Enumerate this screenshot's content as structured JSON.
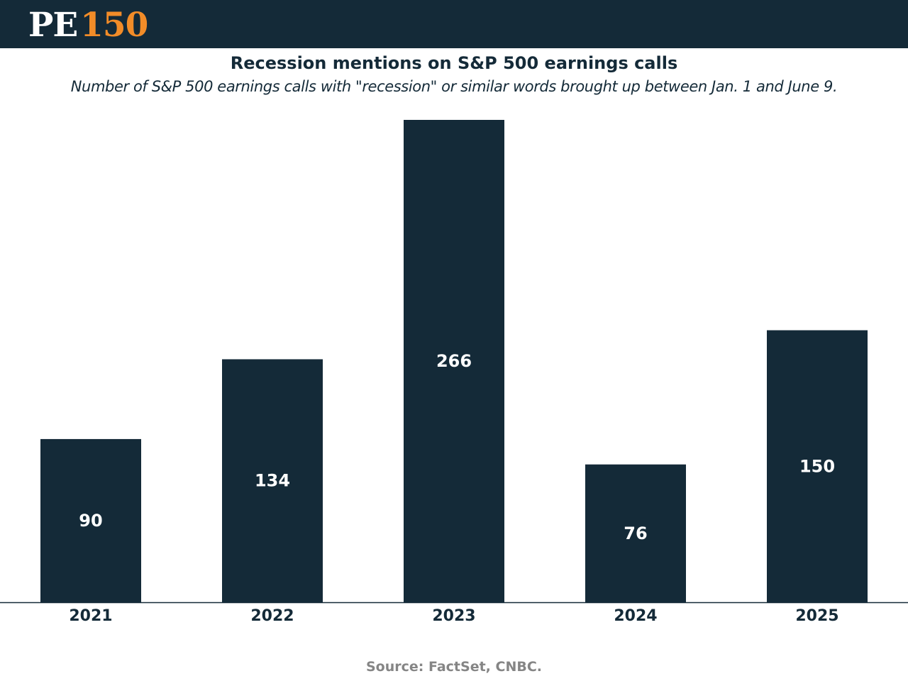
{
  "header": {
    "logo_pe": "PE",
    "logo_num": "150",
    "background": "#142a38",
    "accent": "#f28c28"
  },
  "chart_data": {
    "type": "bar",
    "title": "Recession mentions on S&P 500 earnings calls",
    "subtitle": "Number of S&P 500 earnings calls with \"recession\" or similar words brought up between Jan. 1 and June 9.",
    "categories": [
      "2021",
      "2022",
      "2023",
      "2024",
      "2025"
    ],
    "values": [
      90,
      134,
      266,
      76,
      150
    ],
    "xlabel": "",
    "ylabel": "",
    "ylim": [
      0,
      266
    ],
    "grid": false,
    "legend": "none",
    "bar_color": "#142a38",
    "label_color": "#ffffff"
  },
  "source": "Source: FactSet, CNBC."
}
